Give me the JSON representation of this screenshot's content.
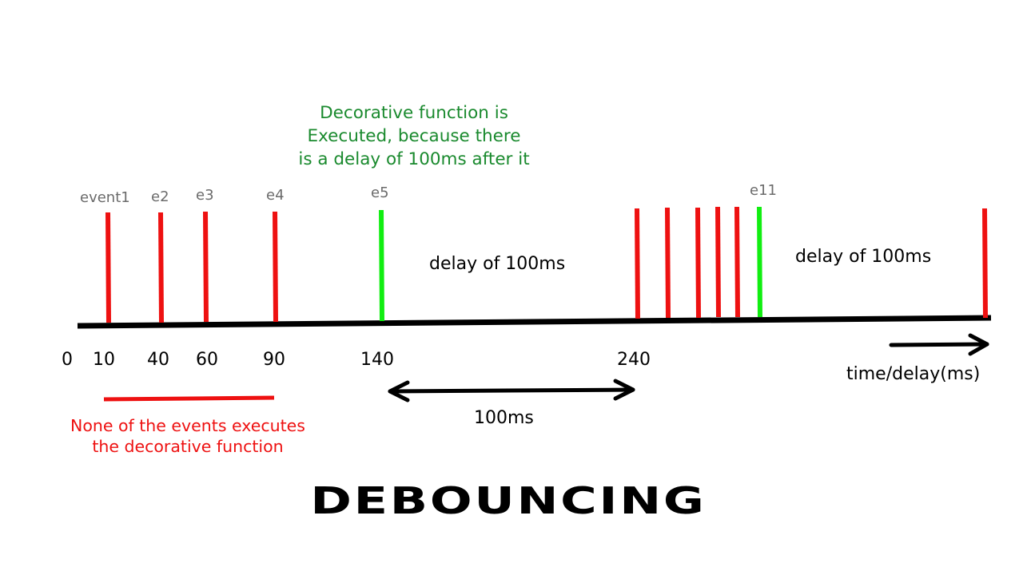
{
  "title": "DEBOUNCING",
  "axis": {
    "tick_labels": [
      "0",
      "10",
      "40",
      "60",
      "90",
      "140",
      "240"
    ],
    "caption": "time/delay(ms)"
  },
  "events": {
    "labels": [
      "event1",
      "e2",
      "e3",
      "e4",
      "e5",
      "e11"
    ]
  },
  "notes": {
    "executed": "Decorative function is\nExecuted, because there\nis a delay of 100ms after it",
    "none_executed": "None of the events executes\nthe decorative function",
    "delay_1": "delay of 100ms",
    "delay_2": "delay of 100ms",
    "interval": "100ms"
  },
  "colors": {
    "timeline": "#000000",
    "ignored_event": "#ee1111",
    "executed_event": "#11ee11",
    "executed_note": "#1a8a2e",
    "ignored_note": "#ee1111",
    "event_label": "#6b6b6b"
  }
}
